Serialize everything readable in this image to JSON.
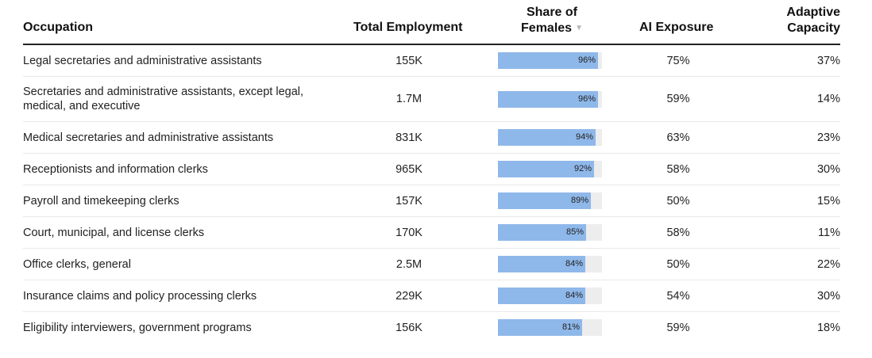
{
  "colors": {
    "bar_fill": "#8fb8ea",
    "bar_track": "#ededed",
    "header_rule": "#222222",
    "row_divider": "#e9e9e9"
  },
  "header": {
    "occupation": "Occupation",
    "total_employment": "Total Employment",
    "share_of_females_line1": "Share of",
    "share_of_females_line2": "Females",
    "sort_icon": "sort-descending-icon",
    "ai_exposure": "AI Exposure",
    "adaptive_capacity_line1": "Adaptive",
    "adaptive_capacity_line2": "Capacity"
  },
  "chart_data": {
    "type": "table",
    "columns": [
      "Occupation",
      "Total Employment",
      "Share of Females",
      "AI Exposure",
      "Adaptive Capacity"
    ],
    "sorted_by": "Share of Females",
    "sort_direction": "descending",
    "rows": [
      {
        "occupation": "Legal secretaries and administrative assistants",
        "employment": "155K",
        "female_share": 96,
        "female_share_label": "96%",
        "ai_exposure": "75%",
        "adaptive_capacity": "37%"
      },
      {
        "occupation": "Secretaries and administrative assistants, except legal, medical, and executive",
        "employment": "1.7M",
        "female_share": 96,
        "female_share_label": "96%",
        "ai_exposure": "59%",
        "adaptive_capacity": "14%"
      },
      {
        "occupation": "Medical secretaries and administrative assistants",
        "employment": "831K",
        "female_share": 94,
        "female_share_label": "94%",
        "ai_exposure": "63%",
        "adaptive_capacity": "23%"
      },
      {
        "occupation": "Receptionists and information clerks",
        "employment": "965K",
        "female_share": 92,
        "female_share_label": "92%",
        "ai_exposure": "58%",
        "adaptive_capacity": "30%"
      },
      {
        "occupation": "Payroll and timekeeping clerks",
        "employment": "157K",
        "female_share": 89,
        "female_share_label": "89%",
        "ai_exposure": "50%",
        "adaptive_capacity": "15%"
      },
      {
        "occupation": "Court, municipal, and license clerks",
        "employment": "170K",
        "female_share": 85,
        "female_share_label": "85%",
        "ai_exposure": "58%",
        "adaptive_capacity": "11%"
      },
      {
        "occupation": "Office clerks, general",
        "employment": "2.5M",
        "female_share": 84,
        "female_share_label": "84%",
        "ai_exposure": "50%",
        "adaptive_capacity": "22%"
      },
      {
        "occupation": "Insurance claims and policy processing clerks",
        "employment": "229K",
        "female_share": 84,
        "female_share_label": "84%",
        "ai_exposure": "54%",
        "adaptive_capacity": "30%"
      },
      {
        "occupation": "Eligibility interviewers, government programs",
        "employment": "156K",
        "female_share": 81,
        "female_share_label": "81%",
        "ai_exposure": "59%",
        "adaptive_capacity": "18%"
      }
    ]
  }
}
